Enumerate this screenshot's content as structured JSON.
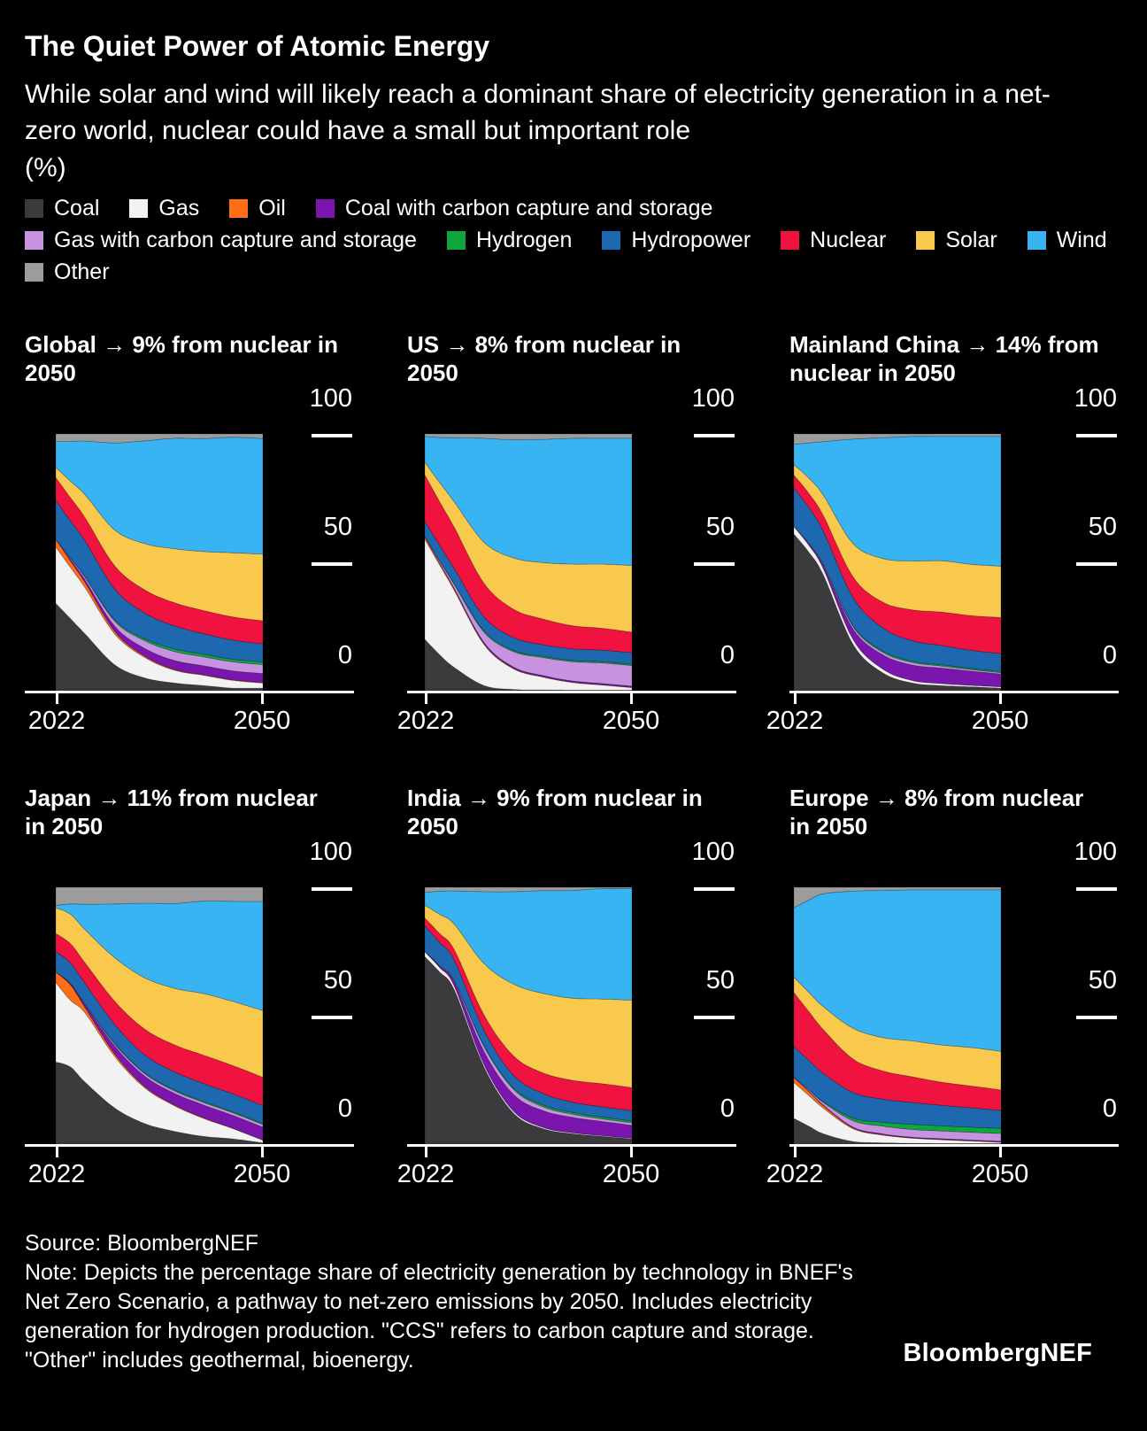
{
  "header": {
    "title": "The Quiet Power of Atomic Energy",
    "subtitle": "While solar and wind will likely reach a dominant share of electricity generation in a net-zero world, nuclear could have a small but important role",
    "unit": "(%)"
  },
  "colors": {
    "Coal": "#3b3b3d",
    "Gas": "#f2f2f2",
    "Oil": "#ff6d17",
    "Coal with carbon capture and storage": "#7a16ad",
    "Gas with carbon capture and storage": "#c793e0",
    "Hydrogen": "#0fa63e",
    "Hydropower": "#1e68b0",
    "Nuclear": "#f0123f",
    "Solar": "#f8c94d",
    "Wind": "#39b4f3",
    "Other": "#9c9c9c",
    "background": "#000000",
    "text": "#ffffff"
  },
  "legend": {
    "items": [
      "Coal",
      "Gas",
      "Oil",
      "Coal with carbon capture and storage",
      "Gas with carbon capture and storage",
      "Hydrogen",
      "Hydropower",
      "Nuclear",
      "Solar",
      "Wind",
      "Other"
    ]
  },
  "footer": {
    "source": "Source: BloombergNEF",
    "note": "Note: Depicts the percentage share of electricity generation by technology in BNEF's Net Zero Scenario, a pathway to net-zero emissions by 2050. Includes electricity generation for hydrogen production. \"CCS\" refers to carbon capture and storage. \"Other\" includes geothermal, bioenergy.",
    "brand": "BloombergNEF"
  },
  "chart_data": [
    {
      "id": "global",
      "type": "area",
      "stacked": true,
      "title": "Global → 9% from nuclear in 2050",
      "nuclear_share_2050": "9%",
      "x": [
        2022,
        2024,
        2026,
        2030,
        2034,
        2038,
        2042,
        2046,
        2050
      ],
      "x_tick_labels": [
        "2022",
        "2050"
      ],
      "y_tick_labels": [
        "100",
        "50",
        "0"
      ],
      "ylim": [
        0,
        100
      ],
      "series": [
        {
          "name": "Coal",
          "values": [
            34,
            28,
            22,
            10,
            5,
            3,
            2,
            1,
            1
          ]
        },
        {
          "name": "Gas",
          "values": [
            22,
            20,
            18,
            12,
            8,
            5,
            4,
            3,
            2
          ]
        },
        {
          "name": "Oil",
          "values": [
            3,
            2.5,
            2,
            1,
            0.5,
            0.3,
            0.2,
            0.2,
            0.2
          ]
        },
        {
          "name": "Coal with carbon capture and storage",
          "values": [
            0,
            0.5,
            1,
            2,
            3,
            3.5,
            3.5,
            3.5,
            3.5
          ]
        },
        {
          "name": "Gas with carbon capture and storage",
          "values": [
            0,
            0.5,
            1,
            2,
            3,
            3.5,
            3.5,
            3.5,
            3.5
          ]
        },
        {
          "name": "Hydrogen",
          "values": [
            0,
            0.1,
            0.2,
            0.5,
            0.8,
            1,
            1,
            1,
            1
          ]
        },
        {
          "name": "Hydropower",
          "values": [
            15,
            14.5,
            14,
            12,
            10,
            9,
            8,
            7.5,
            7
          ]
        },
        {
          "name": "Nuclear",
          "values": [
            9,
            9,
            9,
            9,
            9,
            9,
            9,
            9,
            9
          ]
        },
        {
          "name": "Solar",
          "values": [
            4,
            6.5,
            9,
            14,
            18,
            21,
            23,
            25,
            26
          ]
        },
        {
          "name": "Wind",
          "values": [
            10,
            15.5,
            21,
            34,
            40,
            43,
            44,
            45,
            45
          ]
        },
        {
          "name": "Other",
          "values": [
            3,
            2.9,
            2.8,
            3.5,
            2.7,
            1.7,
            1.8,
            1.3,
            1.8
          ]
        }
      ]
    },
    {
      "id": "us",
      "type": "area",
      "stacked": true,
      "title": "US → 8% from nuclear in 2050",
      "nuclear_share_2050": "8%",
      "x": [
        2022,
        2024,
        2026,
        2030,
        2034,
        2038,
        2042,
        2046,
        2050
      ],
      "x_tick_labels": [
        "2022",
        "2050"
      ],
      "y_tick_labels": [
        "100",
        "50",
        "0"
      ],
      "ylim": [
        0,
        100
      ],
      "series": [
        {
          "name": "Coal",
          "values": [
            20,
            14,
            9,
            2,
            0.5,
            0.3,
            0.2,
            0.2,
            0.2
          ]
        },
        {
          "name": "Gas",
          "values": [
            39,
            35,
            30,
            16,
            8,
            5,
            3,
            2,
            1
          ]
        },
        {
          "name": "Oil",
          "values": [
            1,
            0.7,
            0.5,
            0.3,
            0.2,
            0.1,
            0.1,
            0.1,
            0.1
          ]
        },
        {
          "name": "Coal with carbon capture and storage",
          "values": [
            0,
            0.1,
            0.3,
            0.5,
            0.5,
            0.5,
            0.5,
            0.5,
            0.5
          ]
        },
        {
          "name": "Gas with carbon capture and storage",
          "values": [
            0,
            0.7,
            1.5,
            4,
            6,
            7,
            7.5,
            8,
            8
          ]
        },
        {
          "name": "Hydrogen",
          "values": [
            0,
            0.1,
            0.2,
            0.5,
            0.5,
            0.5,
            0.5,
            0.5,
            0.5
          ]
        },
        {
          "name": "Hydropower",
          "values": [
            6,
            6,
            6,
            5.5,
            5,
            4.5,
            4.5,
            4.5,
            4.5
          ]
        },
        {
          "name": "Nuclear",
          "values": [
            18,
            17,
            16,
            13,
            11,
            10,
            9,
            8.5,
            8
          ]
        },
        {
          "name": "Solar",
          "values": [
            5,
            7.5,
            10,
            16,
            20,
            22,
            24,
            25,
            26
          ]
        },
        {
          "name": "Wind",
          "values": [
            10,
            17.5,
            25,
            40.5,
            46,
            48,
            49,
            49,
            49.5
          ]
        },
        {
          "name": "Other",
          "values": [
            1,
            1.4,
            1.5,
            1.7,
            2.3,
            2.1,
            1.7,
            1.7,
            1.7
          ]
        }
      ]
    },
    {
      "id": "mainland-china",
      "type": "area",
      "stacked": true,
      "title": "Mainland China → 14% from nuclear in 2050",
      "nuclear_share_2050": "14%",
      "x": [
        2022,
        2024,
        2026,
        2030,
        2034,
        2038,
        2042,
        2046,
        2050
      ],
      "x_tick_labels": [
        "2022",
        "2050"
      ],
      "y_tick_labels": [
        "100",
        "50",
        "0"
      ],
      "ylim": [
        0,
        100
      ],
      "series": [
        {
          "name": "Coal",
          "values": [
            61,
            54,
            45,
            18,
            7,
            3,
            2,
            1.5,
            1
          ]
        },
        {
          "name": "Gas",
          "values": [
            3,
            2.8,
            2.5,
            2,
            1.5,
            1,
            0.8,
            0.6,
            0.5
          ]
        },
        {
          "name": "Oil",
          "values": [
            0,
            0,
            0,
            0,
            0,
            0,
            0,
            0,
            0
          ]
        },
        {
          "name": "Coal with carbon capture and storage",
          "values": [
            0,
            0.4,
            1,
            4,
            5.5,
            6,
            6,
            5.5,
            5
          ]
        },
        {
          "name": "Gas with carbon capture and storage",
          "values": [
            0,
            0.2,
            0.5,
            1,
            1,
            1,
            0.8,
            0.6,
            0.5
          ]
        },
        {
          "name": "Hydrogen",
          "values": [
            0,
            0,
            0.1,
            0.3,
            0.5,
            0.5,
            0.5,
            0.5,
            0.5
          ]
        },
        {
          "name": "Hydropower",
          "values": [
            15,
            14,
            13,
            11,
            9,
            8,
            7.5,
            7,
            7
          ]
        },
        {
          "name": "Nuclear",
          "values": [
            5,
            5.5,
            6,
            8,
            10,
            12,
            13,
            13.5,
            14
          ]
        },
        {
          "name": "Solar",
          "values": [
            4,
            6,
            8,
            13,
            17,
            19,
            20,
            20,
            20
          ]
        },
        {
          "name": "Wind",
          "values": [
            8,
            13.6,
            20.9,
            40.7,
            47,
            48.5,
            48.4,
            49.8,
            50.5
          ]
        },
        {
          "name": "Other",
          "values": [
            4,
            3.5,
            3,
            2,
            1.5,
            1,
            1,
            1,
            1
          ]
        }
      ]
    },
    {
      "id": "japan",
      "type": "area",
      "stacked": true,
      "title": "Japan → 11% from nuclear in 2050",
      "nuclear_share_2050": "11%",
      "x": [
        2022,
        2024,
        2026,
        2030,
        2034,
        2038,
        2042,
        2046,
        2050
      ],
      "x_tick_labels": [
        "2022",
        "2050"
      ],
      "y_tick_labels": [
        "100",
        "50",
        "0"
      ],
      "ylim": [
        0,
        100
      ],
      "series": [
        {
          "name": "Coal",
          "values": [
            32,
            30,
            24,
            14,
            8,
            5,
            3,
            2,
            0.5
          ]
        },
        {
          "name": "Gas",
          "values": [
            31,
            26,
            27,
            20,
            14,
            10,
            7,
            4,
            1
          ]
        },
        {
          "name": "Oil",
          "values": [
            4,
            6,
            2,
            1,
            0.5,
            0.3,
            0.2,
            0.1,
            0.1
          ]
        },
        {
          "name": "Coal with carbon capture and storage",
          "values": [
            0,
            0.4,
            1,
            3,
            4,
            4.5,
            5,
            5,
            5
          ]
        },
        {
          "name": "Gas with carbon capture and storage",
          "values": [
            0,
            0.1,
            0.3,
            0.8,
            1,
            1,
            1,
            1,
            1
          ]
        },
        {
          "name": "Hydrogen",
          "values": [
            0,
            0,
            0.1,
            0.2,
            0.3,
            0.4,
            0.4,
            0.4,
            0.4
          ]
        },
        {
          "name": "Hydropower",
          "values": [
            8,
            8,
            8,
            7.5,
            7,
            7,
            7,
            7,
            7
          ]
        },
        {
          "name": "Nuclear",
          "values": [
            7,
            7.5,
            8,
            9,
            10,
            10.5,
            11,
            11,
            11
          ]
        },
        {
          "name": "Solar",
          "values": [
            10,
            11.5,
            13,
            17,
            20,
            22,
            24,
            25,
            26
          ]
        },
        {
          "name": "Wind",
          "values": [
            1,
            4,
            10,
            21,
            29,
            33,
            36,
            39,
            42.5
          ]
        },
        {
          "name": "Other",
          "values": [
            7,
            6.5,
            6.6,
            6.5,
            6.2,
            6.3,
            5.4,
            5.5,
            5.5
          ]
        }
      ]
    },
    {
      "id": "india",
      "type": "area",
      "stacked": true,
      "title": "India → 9% from nuclear in 2050",
      "nuclear_share_2050": "9%",
      "x": [
        2022,
        2024,
        2026,
        2030,
        2034,
        2038,
        2042,
        2046,
        2050
      ],
      "x_tick_labels": [
        "2022",
        "2050"
      ],
      "y_tick_labels": [
        "100",
        "50",
        "0"
      ],
      "ylim": [
        0,
        100
      ],
      "series": [
        {
          "name": "Coal",
          "values": [
            73,
            67,
            60,
            30,
            12,
            6,
            4,
            3,
            2
          ]
        },
        {
          "name": "Gas",
          "values": [
            2,
            1.8,
            1.5,
            1,
            0.8,
            0.5,
            0.4,
            0.3,
            0.3
          ]
        },
        {
          "name": "Oil",
          "values": [
            0,
            0,
            0,
            0,
            0,
            0,
            0,
            0,
            0
          ]
        },
        {
          "name": "Coal with carbon capture and storage",
          "values": [
            0,
            0.5,
            1.5,
            5,
            6.5,
            6.5,
            6,
            5.5,
            5
          ]
        },
        {
          "name": "Gas with carbon capture and storage",
          "values": [
            0,
            0.2,
            0.5,
            2,
            2,
            1.5,
            1.2,
            1,
            1
          ]
        },
        {
          "name": "Hydrogen",
          "values": [
            0,
            0,
            0.1,
            0.3,
            0.5,
            0.7,
            0.7,
            0.7,
            0.7
          ]
        },
        {
          "name": "Hydropower",
          "values": [
            10,
            9,
            8,
            6,
            5,
            4.5,
            4,
            4,
            4
          ]
        },
        {
          "name": "Nuclear",
          "values": [
            3,
            3.5,
            4,
            6,
            7.5,
            8,
            8.5,
            9,
            9
          ]
        },
        {
          "name": "Solar",
          "values": [
            5,
            7.5,
            10,
            20,
            28,
            31,
            32,
            33,
            34
          ]
        },
        {
          "name": "Wind",
          "values": [
            5,
            9,
            13,
            28,
            36,
            40,
            42,
            43,
            43.5
          ]
        },
        {
          "name": "Other",
          "values": [
            2,
            1.5,
            1.4,
            1.7,
            1.7,
            1.3,
            1.2,
            0.5,
            0.5
          ]
        }
      ]
    },
    {
      "id": "europe",
      "type": "area",
      "stacked": true,
      "title": "Europe → 8% from nuclear in 2050",
      "nuclear_share_2050": "8%",
      "x": [
        2022,
        2024,
        2026,
        2030,
        2034,
        2038,
        2042,
        2046,
        2050
      ],
      "x_tick_labels": [
        "2022",
        "2050"
      ],
      "y_tick_labels": [
        "100",
        "50",
        "0"
      ],
      "ylim": [
        0,
        100
      ],
      "series": [
        {
          "name": "Coal",
          "values": [
            10,
            7,
            4,
            1,
            0.5,
            0.3,
            0.2,
            0.2,
            0.2
          ]
        },
        {
          "name": "Gas",
          "values": [
            14,
            12,
            10,
            5,
            3,
            2,
            1.5,
            1,
            0.5
          ]
        },
        {
          "name": "Oil",
          "values": [
            2,
            1.5,
            1,
            0.3,
            0.2,
            0.1,
            0.1,
            0.1,
            0.1
          ]
        },
        {
          "name": "Coal with carbon capture and storage",
          "values": [
            0,
            0.1,
            0.2,
            0.3,
            0.3,
            0.3,
            0.3,
            0.3,
            0.3
          ]
        },
        {
          "name": "Gas with carbon capture and storage",
          "values": [
            0,
            0.5,
            1,
            2.5,
            3,
            3,
            3,
            3,
            3
          ]
        },
        {
          "name": "Hydrogen",
          "values": [
            0,
            0.1,
            0.3,
            1,
            1.5,
            2,
            2,
            2,
            2
          ]
        },
        {
          "name": "Hydropower",
          "values": [
            12,
            11.5,
            11,
            10,
            9,
            8.5,
            8,
            7.5,
            7
          ]
        },
        {
          "name": "Nuclear",
          "values": [
            21,
            19,
            17,
            13,
            11,
            10,
            9,
            8.5,
            8
          ]
        },
        {
          "name": "Solar",
          "values": [
            6,
            7.5,
            9,
            12,
            13,
            14,
            14.5,
            15,
            15
          ]
        },
        {
          "name": "Wind",
          "values": [
            27,
            35.8,
            44,
            53.4,
            57.3,
            58.8,
            60.4,
            61.4,
            62.9
          ]
        },
        {
          "name": "Other",
          "values": [
            8,
            5,
            2.5,
            1.5,
            1.2,
            1,
            1,
            1,
            1
          ]
        }
      ]
    }
  ]
}
